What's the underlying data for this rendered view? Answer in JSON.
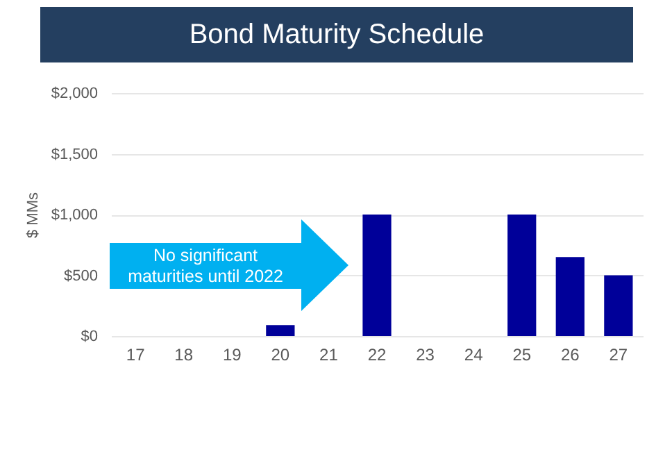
{
  "chart_data": {
    "type": "bar",
    "title": "Bond Maturity Schedule",
    "ylabel": "$ MMs",
    "categories": [
      "17",
      "18",
      "19",
      "20",
      "21",
      "22",
      "23",
      "24",
      "25",
      "26",
      "27"
    ],
    "values": [
      null,
      null,
      null,
      90,
      null,
      1000,
      null,
      null,
      1000,
      650,
      500
    ],
    "color": "#000099",
    "ylim": [
      0,
      2000
    ],
    "yticks": [
      {
        "value": 0,
        "label": "$0"
      },
      {
        "value": 500,
        "label": "$500"
      },
      {
        "value": 1000,
        "label": "$1,000"
      },
      {
        "value": 1500,
        "label": "$1,500"
      },
      {
        "value": 2000,
        "label": "$2,000"
      }
    ],
    "grid": "y",
    "annotations": [
      "No significant maturities until 2022"
    ]
  }
}
